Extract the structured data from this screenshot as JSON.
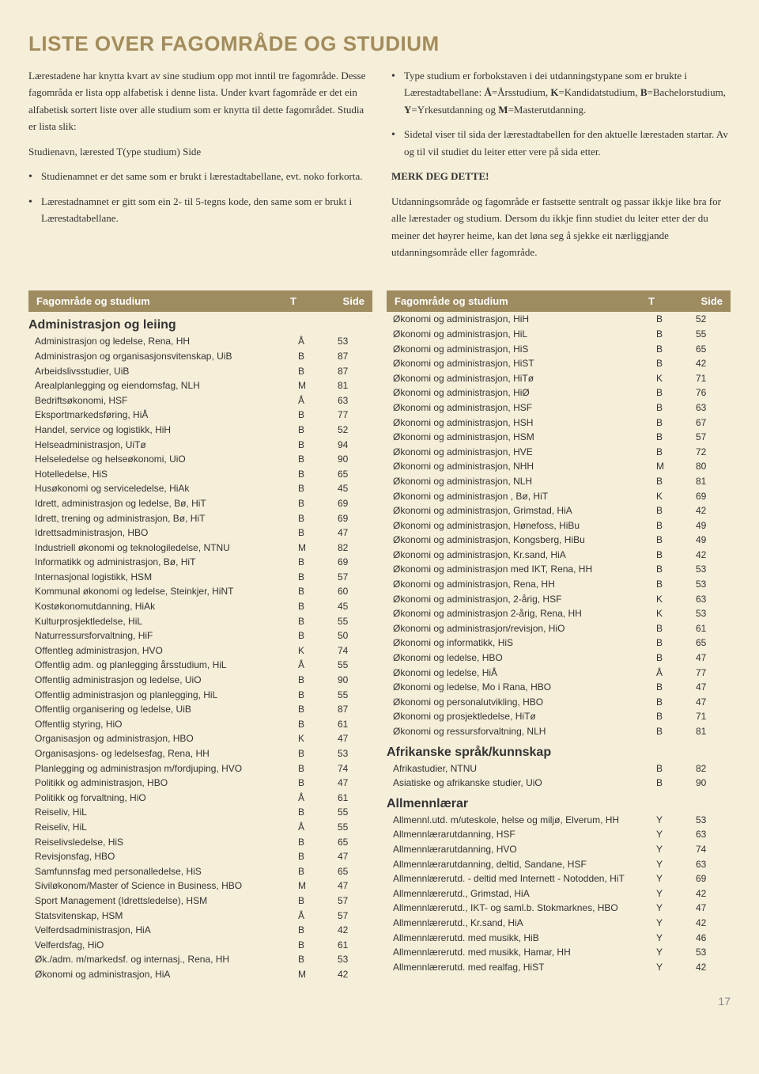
{
  "title": "LISTE OVER FAGOMRÅDE OG STUDIUM",
  "intro_left": {
    "p1": "Lærestadene har knytta kvart av sine studium opp mot inntil tre fagområde. Desse fagområda er lista opp alfabetisk i denne lista. Under kvart fagområde er det ein alfabetisk sortert liste over alle studium som er knytta til dette fagområdet. Studia er lista slik:",
    "p2": "Studienavn, lærested          T(ype studium)       Side",
    "b1": "Studienamnet er det same som er brukt i lærestadtabellane, evt. noko forkorta.",
    "b2": "Lærestadnamnet er gitt som ein 2- til 5-tegns kode, den same som er brukt i Lærestadtabellane."
  },
  "intro_right": {
    "b1a": "Type studium er forbokstaven i dei utdanningstypane som er brukte i Lærestadtabellane: ",
    "b1b": "=Årsstudium, ",
    "b1c": "=Kandidatstudium, ",
    "b1d": "=Bachelorstudium, ",
    "b1e": "=Yrkesutdanning og ",
    "b1f": "=Masterutdanning.",
    "b2": "Sidetal viser til sida der lærestadtabellen for den aktuelle lærestaden startar. Av og til vil studiet du leiter etter vere på sida etter.",
    "merk": "MERK DEG DETTE!",
    "p": "Utdanningsområde og fagområde er fastsette sentralt og passar ikkje like bra for alle lærestader og studium. Dersom du ikkje finn studiet du leiter etter der du meiner det høyrer heime, kan det løna seg å sjekke eit nærliggjande utdanningsområde eller fagområde."
  },
  "head": {
    "n": "Fagområde og studium",
    "t": "T",
    "s": "Side"
  },
  "left": {
    "s1": "Administrasjon og leiing",
    "r": [
      [
        "Administrasjon og ledelse, Rena, HH",
        "Å",
        "53"
      ],
      [
        "Administrasjon og organisasjonsvitenskap, UiB",
        "B",
        "87"
      ],
      [
        "Arbeidslivsstudier, UiB",
        "B",
        "87"
      ],
      [
        "Arealplanlegging og eiendomsfag, NLH",
        "M",
        "81"
      ],
      [
        "Bedriftsøkonomi, HSF",
        "Å",
        "63"
      ],
      [
        "Eksportmarkedsføring, HiÅ",
        "B",
        "77"
      ],
      [
        "Handel, service og logistikk, HiH",
        "B",
        "52"
      ],
      [
        "Helseadministrasjon, UiTø",
        "B",
        "94"
      ],
      [
        "Helseledelse og helseøkonomi, UiO",
        "B",
        "90"
      ],
      [
        "Hotelledelse, HiS",
        "B",
        "65"
      ],
      [
        "Husøkonomi og serviceledelse, HiAk",
        "B",
        "45"
      ],
      [
        "Idrett, administrasjon og ledelse, Bø, HiT",
        "B",
        "69"
      ],
      [
        "Idrett, trening og administrasjon, Bø, HiT",
        "B",
        "69"
      ],
      [
        "Idrettsadministrasjon, HBO",
        "B",
        "47"
      ],
      [
        "Industriell økonomi og teknologiledelse, NTNU",
        "M",
        "82"
      ],
      [
        "Informatikk og administrasjon, Bø, HiT",
        "B",
        "69"
      ],
      [
        "Internasjonal logistikk, HSM",
        "B",
        "57"
      ],
      [
        "Kommunal økonomi og ledelse, Steinkjer, HiNT",
        "B",
        "60"
      ],
      [
        "Kostøkonomutdanning, HiAk",
        "B",
        "45"
      ],
      [
        "Kulturprosjektledelse, HiL",
        "B",
        "55"
      ],
      [
        "Naturressursforvaltning, HiF",
        "B",
        "50"
      ],
      [
        "Offentleg administrasjon, HVO",
        "K",
        "74"
      ],
      [
        "Offentlig adm. og planlegging årsstudium, HiL",
        "Å",
        "55"
      ],
      [
        "Offentlig administrasjon og ledelse, UiO",
        "B",
        "90"
      ],
      [
        "Offentlig administrasjon og planlegging, HiL",
        "B",
        "55"
      ],
      [
        "Offentlig organisering og ledelse, UiB",
        "B",
        "87"
      ],
      [
        "Offentlig styring, HiO",
        "B",
        "61"
      ],
      [
        "Organisasjon og administrasjon, HBO",
        "K",
        "47"
      ],
      [
        "Organisasjons- og ledelsesfag, Rena, HH",
        "B",
        "53"
      ],
      [
        "Planlegging og administrasjon m/fordjuping, HVO",
        "B",
        "74"
      ],
      [
        "Politikk og administrasjon, HBO",
        "B",
        "47"
      ],
      [
        "Politikk og forvaltning, HiO",
        "Å",
        "61"
      ],
      [
        "Reiseliv, HiL",
        "B",
        "55"
      ],
      [
        "Reiseliv, HiL",
        "Å",
        "55"
      ],
      [
        "Reiselivsledelse, HiS",
        "B",
        "65"
      ],
      [
        "Revisjonsfag, HBO",
        "B",
        "47"
      ],
      [
        "Samfunnsfag med personalledelse, HiS",
        "B",
        "65"
      ],
      [
        "Siviløkonom/Master of Science in Business, HBO",
        "M",
        "47"
      ],
      [
        "Sport Management (Idrettsledelse), HSM",
        "B",
        "57"
      ],
      [
        "Statsvitenskap, HSM",
        "Å",
        "57"
      ],
      [
        "Velferdsadministrasjon, HiA",
        "B",
        "42"
      ],
      [
        "Velferdsfag, HiO",
        "B",
        "61"
      ],
      [
        "Øk./adm. m/markedsf. og internasj., Rena, HH",
        "B",
        "53"
      ],
      [
        "Økonomi og administrasjon, HiA",
        "M",
        "42"
      ]
    ]
  },
  "right": {
    "r1": [
      [
        "Økonomi og administrasjon, HiH",
        "B",
        "52"
      ],
      [
        "Økonomi og administrasjon, HiL",
        "B",
        "55"
      ],
      [
        "Økonomi og administrasjon, HiS",
        "B",
        "65"
      ],
      [
        "Økonomi og administrasjon, HiST",
        "B",
        "42"
      ],
      [
        "Økonomi og administrasjon, HiTø",
        "K",
        "71"
      ],
      [
        "Økonomi og administrasjon, HiØ",
        "B",
        "76"
      ],
      [
        "Økonomi og administrasjon, HSF",
        "B",
        "63"
      ],
      [
        "Økonomi og administrasjon, HSH",
        "B",
        "67"
      ],
      [
        "Økonomi og administrasjon, HSM",
        "B",
        "57"
      ],
      [
        "Økonomi og administrasjon, HVE",
        "B",
        "72"
      ],
      [
        "Økonomi og administrasjon, NHH",
        "M",
        "80"
      ],
      [
        "Økonomi og administrasjon, NLH",
        "B",
        "81"
      ],
      [
        "Økonomi og administrasjon , Bø, HiT",
        "K",
        "69"
      ],
      [
        "Økonomi og administrasjon, Grimstad, HiA",
        "B",
        "42"
      ],
      [
        "Økonomi og administrasjon, Hønefoss, HiBu",
        "B",
        "49"
      ],
      [
        "Økonomi og administrasjon, Kongsberg, HiBu",
        "B",
        "49"
      ],
      [
        "Økonomi og administrasjon, Kr.sand, HiA",
        "B",
        "42"
      ],
      [
        "Økonomi og administrasjon med IKT, Rena, HH",
        "B",
        "53"
      ],
      [
        "Økonomi og administrasjon, Rena, HH",
        "B",
        "53"
      ],
      [
        "Økonomi og administrasjon, 2-årig, HSF",
        "K",
        "63"
      ],
      [
        "Økonomi og administrasjon 2-årig, Rena, HH",
        "K",
        "53"
      ],
      [
        "Økonomi og administrasjon/revisjon, HiO",
        "B",
        "61"
      ],
      [
        "Økonomi og informatikk, HiS",
        "B",
        "65"
      ],
      [
        "Økonomi og ledelse, HBO",
        "B",
        "47"
      ],
      [
        "Økonomi og ledelse, HiÅ",
        "Å",
        "77"
      ],
      [
        "Økonomi og ledelse, Mo i Rana, HBO",
        "B",
        "47"
      ],
      [
        "Økonomi og personalutvikling, HBO",
        "B",
        "47"
      ],
      [
        "Økonomi og prosjektledelse, HiTø",
        "B",
        "71"
      ],
      [
        "Økonomi og ressursforvaltning, NLH",
        "B",
        "81"
      ]
    ],
    "s2": "Afrikanske språk/kunnskap",
    "r2": [
      [
        "Afrikastudier, NTNU",
        "B",
        "82"
      ],
      [
        "Asiatiske og afrikanske studier, UiO",
        "B",
        "90"
      ]
    ],
    "s3": "Allmennlærar",
    "r3": [
      [
        "Allmennl.utd. m/uteskole, helse og miljø, Elverum, HH",
        "Y",
        "53"
      ],
      [
        "Allmennlærarutdanning, HSF",
        "Y",
        "63"
      ],
      [
        "Allmennlærarutdanning, HVO",
        "Y",
        "74"
      ],
      [
        "Allmennlærarutdanning, deltid, Sandane, HSF",
        "Y",
        "63"
      ],
      [
        "Allmennlærerutd. - deltid med Internett - Notodden, HiT",
        "Y",
        "69"
      ],
      [
        "Allmennlærerutd., Grimstad, HiA",
        "Y",
        "42"
      ],
      [
        "Allmennlærerutd., IKT- og saml.b. Stokmarknes, HBO",
        "Y",
        "47"
      ],
      [
        "Allmennlærerutd., Kr.sand, HiA",
        "Y",
        "42"
      ],
      [
        "Allmennlærerutd. med musikk, HiB",
        "Y",
        "46"
      ],
      [
        "Allmennlærerutd. med musikk, Hamar, HH",
        "Y",
        "53"
      ],
      [
        "Allmennlærerutd. med realfag, HiST",
        "Y",
        "42"
      ]
    ]
  },
  "pagenum": "17"
}
